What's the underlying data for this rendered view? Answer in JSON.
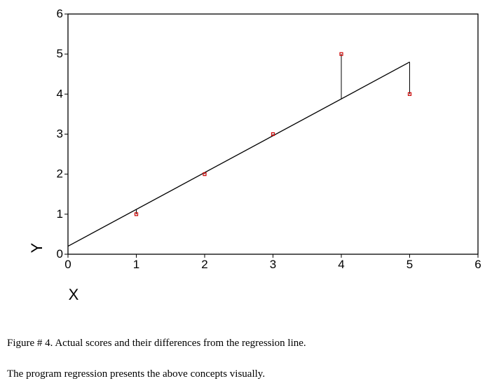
{
  "chart_data": {
    "type": "scatter",
    "xlabel": "X",
    "ylabel": "Y",
    "xlim": [
      0,
      6
    ],
    "ylim": [
      0,
      6
    ],
    "xticks": [
      0,
      1,
      2,
      3,
      4,
      5,
      6
    ],
    "yticks": [
      0,
      1,
      2,
      3,
      4,
      5,
      6
    ],
    "grid": false,
    "points": [
      {
        "x": 1,
        "y": 1
      },
      {
        "x": 2,
        "y": 2
      },
      {
        "x": 3,
        "y": 3
      },
      {
        "x": 4,
        "y": 5
      },
      {
        "x": 5,
        "y": 4
      }
    ],
    "regression_line": {
      "intercept": 0.2,
      "slope": 0.92
    },
    "residual_lines": true,
    "colors": {
      "points": "#cc0000",
      "line": "#000000",
      "residuals": "#000000"
    }
  },
  "captions": {
    "figure": "Figure # 4. Actual scores and their differences from the regression line.",
    "note": "The program regression presents the above concepts visually."
  }
}
